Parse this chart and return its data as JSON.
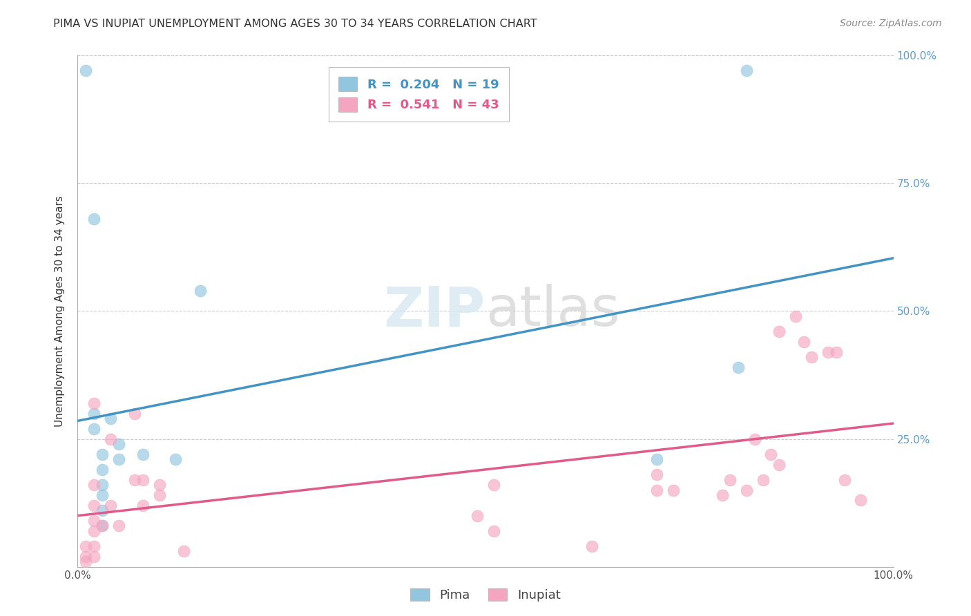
{
  "title": "PIMA VS INUPIAT UNEMPLOYMENT AMONG AGES 30 TO 34 YEARS CORRELATION CHART",
  "source": "Source: ZipAtlas.com",
  "ylabel": "Unemployment Among Ages 30 to 34 years",
  "xlim": [
    0,
    1
  ],
  "ylim": [
    0,
    1
  ],
  "pima_color": "#92c5de",
  "inupiat_color": "#f4a6c0",
  "pima_line_color": "#4393c3",
  "inupiat_line_color": "#e05a8a",
  "pima_R": 0.204,
  "pima_N": 19,
  "inupiat_R": 0.541,
  "inupiat_N": 43,
  "pima_points": [
    [
      0.01,
      0.97
    ],
    [
      0.02,
      0.68
    ],
    [
      0.02,
      0.3
    ],
    [
      0.02,
      0.27
    ],
    [
      0.03,
      0.22
    ],
    [
      0.03,
      0.19
    ],
    [
      0.03,
      0.16
    ],
    [
      0.03,
      0.14
    ],
    [
      0.03,
      0.11
    ],
    [
      0.03,
      0.08
    ],
    [
      0.04,
      0.29
    ],
    [
      0.05,
      0.24
    ],
    [
      0.05,
      0.21
    ],
    [
      0.08,
      0.22
    ],
    [
      0.12,
      0.21
    ],
    [
      0.15,
      0.54
    ],
    [
      0.71,
      0.21
    ],
    [
      0.81,
      0.39
    ],
    [
      0.82,
      0.97
    ]
  ],
  "inupiat_points": [
    [
      0.01,
      0.04
    ],
    [
      0.01,
      0.02
    ],
    [
      0.01,
      0.01
    ],
    [
      0.02,
      0.32
    ],
    [
      0.02,
      0.16
    ],
    [
      0.02,
      0.12
    ],
    [
      0.02,
      0.09
    ],
    [
      0.02,
      0.07
    ],
    [
      0.02,
      0.04
    ],
    [
      0.02,
      0.02
    ],
    [
      0.03,
      0.08
    ],
    [
      0.04,
      0.25
    ],
    [
      0.04,
      0.12
    ],
    [
      0.05,
      0.08
    ],
    [
      0.07,
      0.3
    ],
    [
      0.07,
      0.17
    ],
    [
      0.08,
      0.17
    ],
    [
      0.08,
      0.12
    ],
    [
      0.1,
      0.16
    ],
    [
      0.1,
      0.14
    ],
    [
      0.13,
      0.03
    ],
    [
      0.49,
      0.1
    ],
    [
      0.51,
      0.07
    ],
    [
      0.51,
      0.16
    ],
    [
      0.63,
      0.04
    ],
    [
      0.71,
      0.18
    ],
    [
      0.73,
      0.15
    ],
    [
      0.79,
      0.14
    ],
    [
      0.8,
      0.17
    ],
    [
      0.82,
      0.15
    ],
    [
      0.83,
      0.25
    ],
    [
      0.84,
      0.17
    ],
    [
      0.85,
      0.22
    ],
    [
      0.86,
      0.2
    ],
    [
      0.86,
      0.46
    ],
    [
      0.88,
      0.49
    ],
    [
      0.89,
      0.44
    ],
    [
      0.9,
      0.41
    ],
    [
      0.92,
      0.42
    ],
    [
      0.93,
      0.42
    ],
    [
      0.94,
      0.17
    ],
    [
      0.96,
      0.13
    ],
    [
      0.71,
      0.15
    ]
  ]
}
